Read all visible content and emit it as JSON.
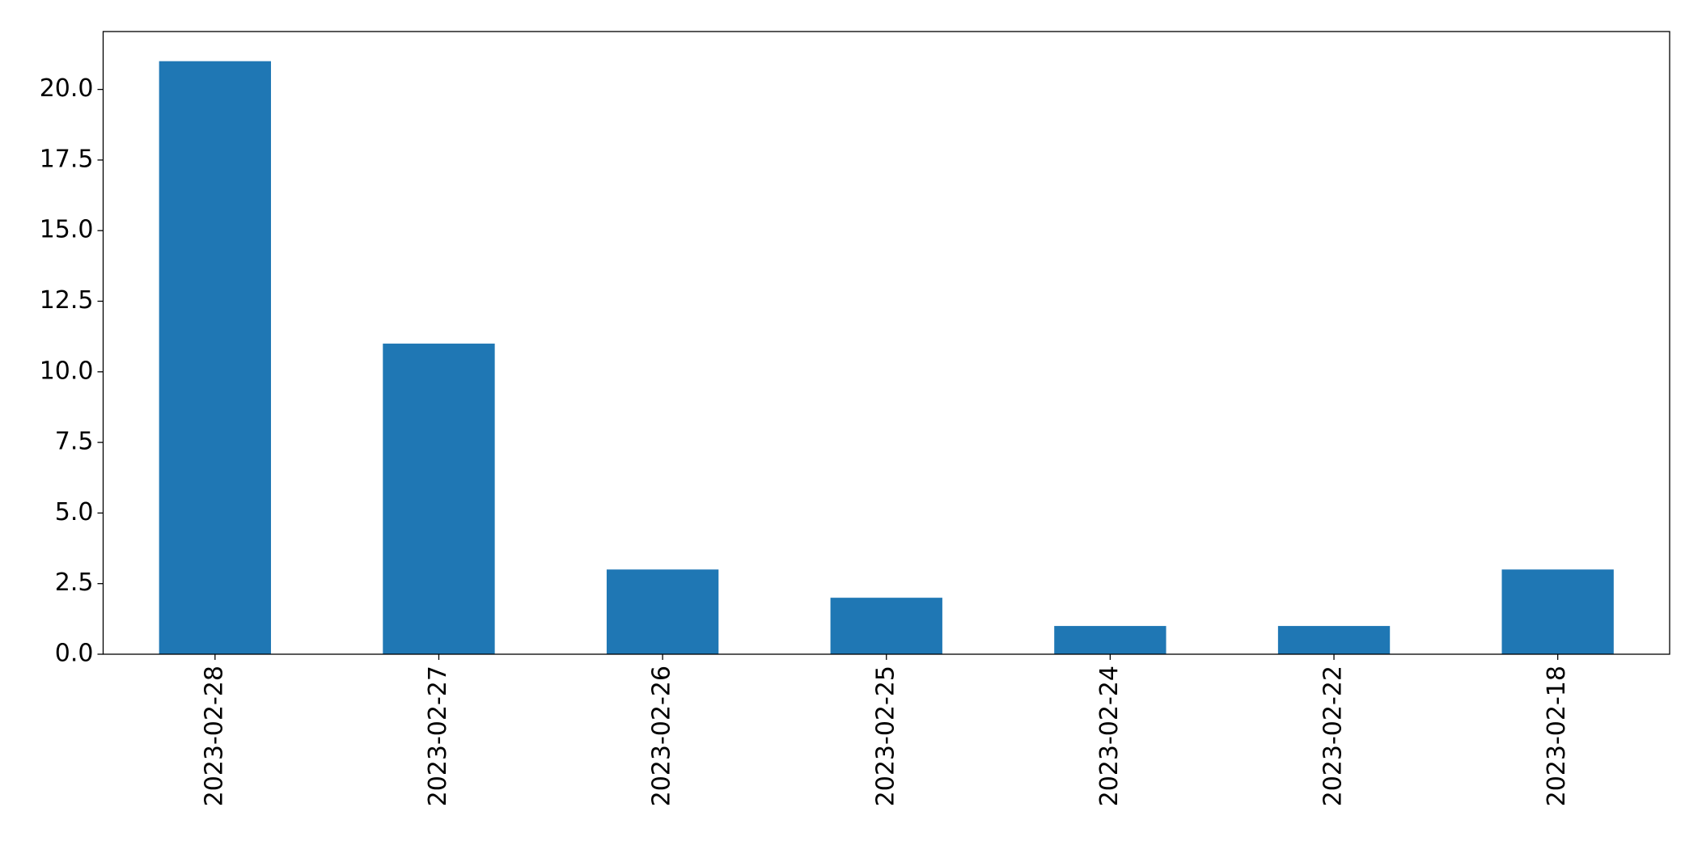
{
  "chart_data": {
    "type": "bar",
    "categories": [
      "2023-02-28",
      "2023-02-27",
      "2023-02-26",
      "2023-02-25",
      "2023-02-24",
      "2023-02-22",
      "2023-02-18"
    ],
    "values": [
      21,
      11,
      3,
      2,
      1,
      1,
      3
    ],
    "color": "#1f77b4",
    "ylim": [
      0,
      22.05
    ],
    "yticks": [
      {
        "value": 0,
        "label": "0.0"
      },
      2.5,
      {
        "value": 5,
        "label": "5.0"
      },
      7.5,
      {
        "value": 10,
        "label": "10.0"
      },
      12.5,
      {
        "value": 15,
        "label": "15.0"
      },
      17.5,
      {
        "value": 20,
        "label": "20.0"
      }
    ],
    "grid": false
  }
}
